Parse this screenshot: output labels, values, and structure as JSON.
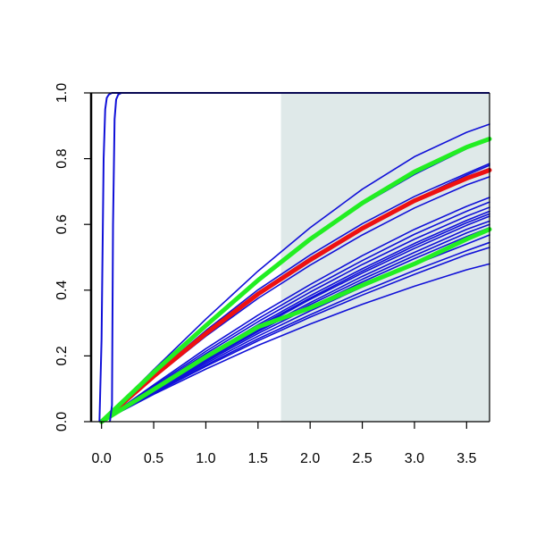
{
  "chart_data": {
    "type": "line",
    "title": "",
    "xlabel": "",
    "ylabel": "",
    "xlim": [
      -0.1,
      3.72
    ],
    "ylim": [
      0.0,
      1.0
    ],
    "grid": false,
    "legend": "none",
    "x_ticks": [
      "0.0",
      "0.5",
      "1.0",
      "1.5",
      "2.0",
      "2.5",
      "3.0",
      "3.5"
    ],
    "y_ticks": [
      "0.0",
      "0.2",
      "0.4",
      "0.6",
      "0.8",
      "1.0"
    ],
    "shaded_region": {
      "x_from": 1.72,
      "x_to": 3.72,
      "color": "#dfe9e9"
    },
    "colors": {
      "blue": "#1010d8",
      "red": "#ee1111",
      "green": "#22ee22",
      "axis": "#000000"
    },
    "x": [
      0.0,
      0.5,
      1.0,
      1.5,
      2.0,
      2.5,
      3.0,
      3.5,
      3.72
    ],
    "series": [
      {
        "color": "blue",
        "width": "thin",
        "values": [
          0.0,
          0.142,
          0.277,
          0.401,
          0.507,
          0.602,
          0.685,
          0.755,
          0.785
        ]
      },
      {
        "color": "blue",
        "width": "thin",
        "values": [
          0.0,
          0.15,
          0.295,
          0.43,
          0.552,
          0.66,
          0.752,
          0.83,
          0.86
        ]
      },
      {
        "color": "blue",
        "width": "thin",
        "values": [
          0.0,
          0.158,
          0.312,
          0.458,
          0.59,
          0.707,
          0.806,
          0.88,
          0.905
        ]
      },
      {
        "color": "blue",
        "width": "thin",
        "values": [
          0.0,
          0.14,
          0.272,
          0.394,
          0.498,
          0.591,
          0.675,
          0.75,
          0.78
        ]
      },
      {
        "color": "blue",
        "width": "thin",
        "values": [
          0.0,
          0.136,
          0.265,
          0.384,
          0.487,
          0.583,
          0.668,
          0.745,
          0.77
        ]
      },
      {
        "color": "blue",
        "width": "thin",
        "values": [
          0.0,
          0.134,
          0.26,
          0.375,
          0.476,
          0.568,
          0.65,
          0.72,
          0.745
        ]
      },
      {
        "color": "blue",
        "width": "thin",
        "values": [
          0.0,
          0.112,
          0.222,
          0.324,
          0.417,
          0.505,
          0.585,
          0.655,
          0.682
        ]
      },
      {
        "color": "blue",
        "width": "thin",
        "values": [
          0.0,
          0.108,
          0.214,
          0.313,
          0.405,
          0.49,
          0.57,
          0.64,
          0.668
        ]
      },
      {
        "color": "blue",
        "width": "thin",
        "values": [
          0.0,
          0.104,
          0.207,
          0.304,
          0.394,
          0.478,
          0.555,
          0.625,
          0.652
        ]
      },
      {
        "color": "blue",
        "width": "thin",
        "values": [
          0.0,
          0.1,
          0.2,
          0.295,
          0.383,
          0.465,
          0.542,
          0.612,
          0.64
        ]
      },
      {
        "color": "blue",
        "width": "thin",
        "values": [
          0.0,
          0.097,
          0.193,
          0.285,
          0.372,
          0.452,
          0.527,
          0.597,
          0.625
        ]
      },
      {
        "color": "blue",
        "width": "thin",
        "values": [
          0.0,
          0.095,
          0.188,
          0.278,
          0.362,
          0.442,
          0.515,
          0.585,
          0.61
        ]
      },
      {
        "color": "blue",
        "width": "thin",
        "values": [
          0.0,
          0.092,
          0.182,
          0.268,
          0.348,
          0.425,
          0.496,
          0.563,
          0.59
        ]
      },
      {
        "color": "blue",
        "width": "thin",
        "values": [
          0.0,
          0.09,
          0.177,
          0.26,
          0.337,
          0.41,
          0.478,
          0.54,
          0.568
        ]
      },
      {
        "color": "blue",
        "width": "thin",
        "values": [
          0.0,
          0.088,
          0.172,
          0.252,
          0.325,
          0.395,
          0.46,
          0.52,
          0.545
        ]
      },
      {
        "color": "blue",
        "width": "thin",
        "values": [
          0.0,
          0.086,
          0.168,
          0.246,
          0.318,
          0.385,
          0.448,
          0.508,
          0.53
        ]
      },
      {
        "color": "blue",
        "width": "thin",
        "values": [
          0.0,
          0.083,
          0.16,
          0.232,
          0.297,
          0.357,
          0.412,
          0.462,
          0.48
        ]
      },
      {
        "color": "blue",
        "width": "thin",
        "values": [
          0.0,
          0.098,
          0.196,
          0.29,
          0.376,
          0.458,
          0.535,
          0.605,
          0.632
        ]
      },
      {
        "color": "blue",
        "width": "thin",
        "values": [
          0.0,
          0.094,
          0.186,
          0.274,
          0.356,
          0.433,
          0.505,
          0.574,
          0.6
        ]
      },
      {
        "color": "red",
        "width": "thick",
        "values": [
          0.0,
          0.138,
          0.268,
          0.388,
          0.492,
          0.588,
          0.672,
          0.74,
          0.765
        ]
      },
      {
        "color": "green",
        "width": "thick",
        "values": [
          0.0,
          0.15,
          0.292,
          0.43,
          0.555,
          0.665,
          0.76,
          0.835,
          0.86
        ]
      },
      {
        "color": "green",
        "width": "thick",
        "values": [
          0.0,
          0.098,
          0.197,
          0.288,
          0.346,
          0.415,
          0.48,
          0.555,
          0.585
        ]
      }
    ],
    "step_series": [
      {
        "color": "blue",
        "x": [
          -0.02,
          0.0,
          0.02,
          0.035,
          0.05,
          0.07,
          0.1,
          3.72
        ],
        "values": [
          0.0,
          0.25,
          0.8,
          0.95,
          0.985,
          0.995,
          1.0,
          1.0
        ]
      },
      {
        "color": "blue",
        "x": [
          0.08,
          0.1,
          0.11,
          0.125,
          0.14,
          0.16,
          0.19,
          3.72
        ],
        "values": [
          0.0,
          0.05,
          0.6,
          0.92,
          0.98,
          0.995,
          1.0,
          1.0
        ]
      }
    ]
  }
}
